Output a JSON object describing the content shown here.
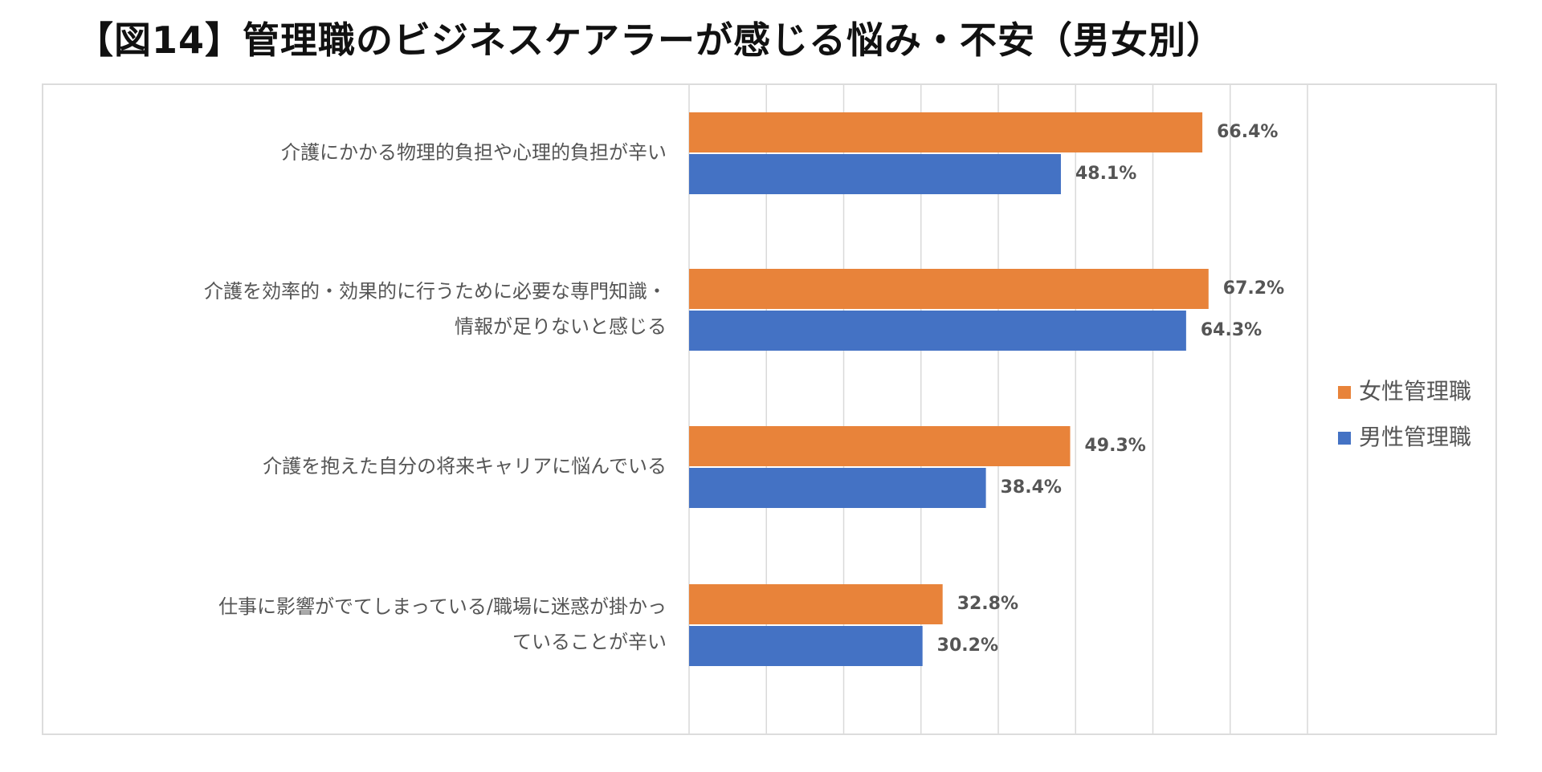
{
  "title": "【図14】管理職のビジネスケアラーが感じる悩み・不安（男女別）",
  "chart_data": {
    "type": "bar",
    "orientation": "horizontal",
    "categories": [
      [
        "介護にかかる物理的負担や心理的負担が辛い"
      ],
      [
        "介護を効率的・効果的に行うために必要な専門知識・",
        "情報が足りないと感じる"
      ],
      [
        "介護を抱えた自分の将来キャリアに悩んでいる"
      ],
      [
        "仕事に影響がでてしまっている/職場に迷惑が掛かっ",
        "ていることが辛い"
      ]
    ],
    "series": [
      {
        "name": "女性管理職",
        "color": "#E8833A",
        "values": [
          66.4,
          67.2,
          49.3,
          32.8
        ],
        "labels": [
          "66.4%",
          "67.2%",
          "49.3%",
          "32.8%"
        ]
      },
      {
        "name": "男性管理職",
        "color": "#4472C4",
        "values": [
          48.1,
          64.3,
          38.4,
          30.2
        ],
        "labels": [
          "48.1%",
          "64.3%",
          "38.4%",
          "30.2%"
        ]
      }
    ],
    "xlim": [
      0,
      80
    ],
    "grid": true,
    "legend_position": "right"
  }
}
